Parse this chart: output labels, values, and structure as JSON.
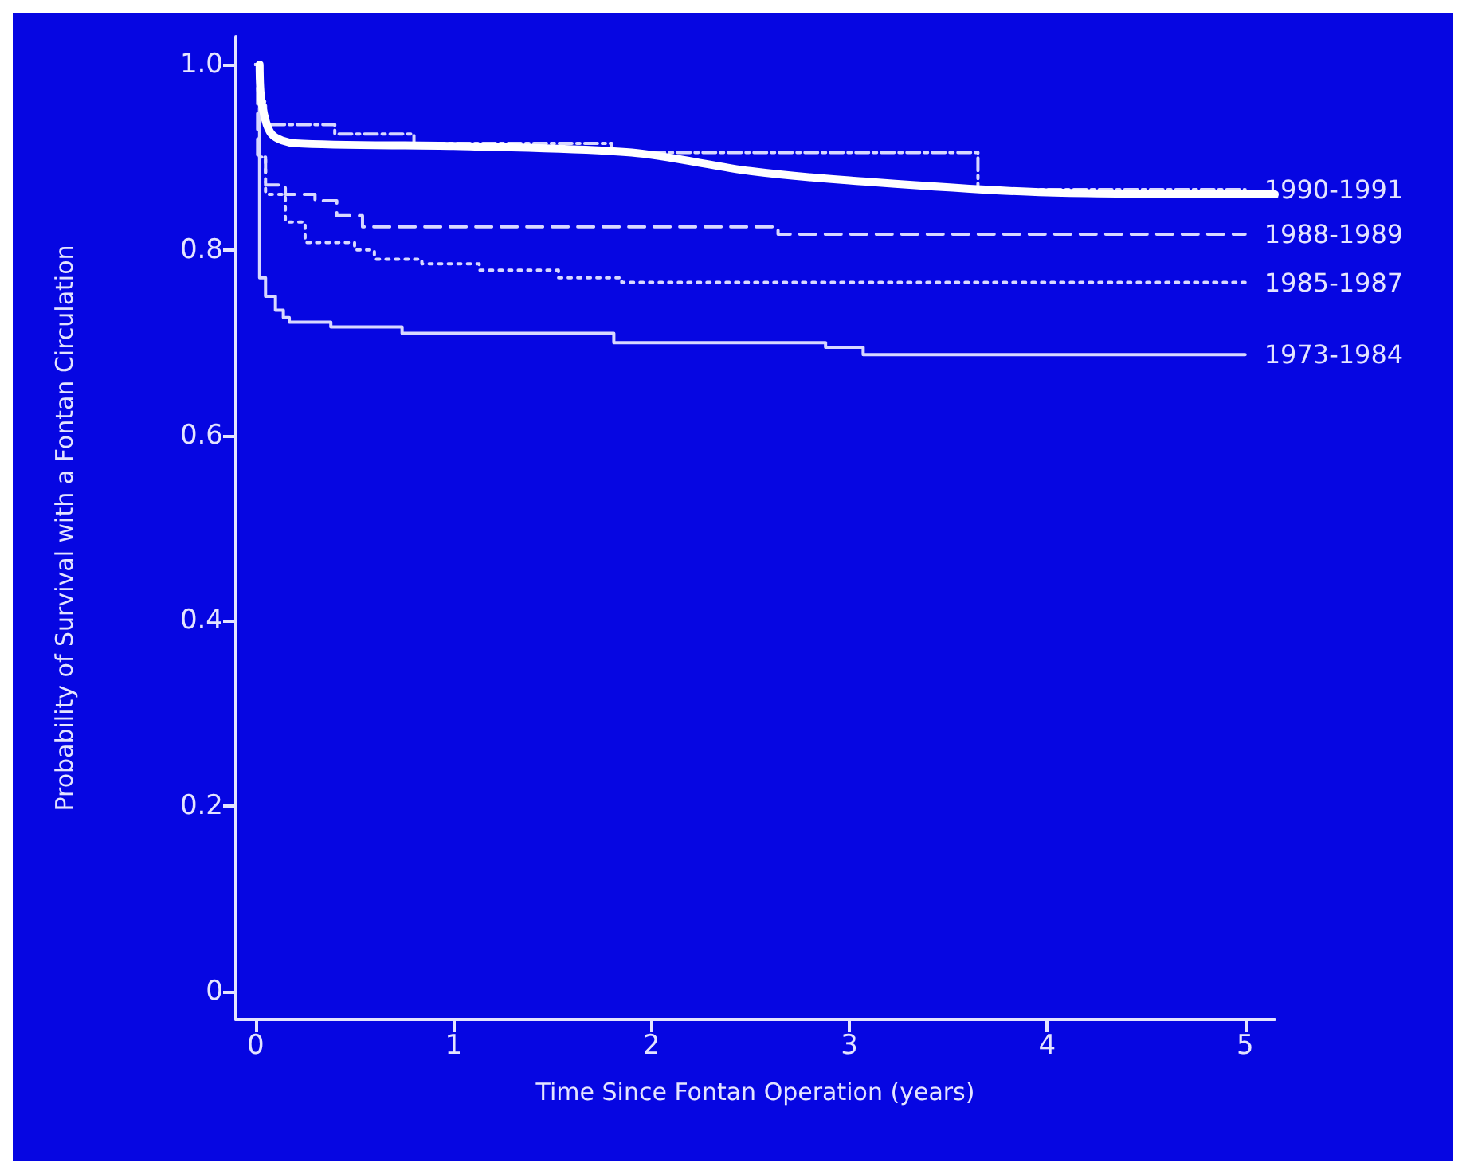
{
  "chart_data": {
    "type": "step",
    "xlabel": "Time Since Fontan Operation (years)",
    "ylabel": "Probability of Survival with a Fontan Circulation",
    "xlim": [
      -0.1,
      5.15
    ],
    "ylim": [
      -0.03,
      1.03
    ],
    "xticks": [
      0,
      1,
      2,
      3,
      4,
      5
    ],
    "yticks": [
      0,
      {
        "value": 0.2,
        "label": "0.2"
      },
      {
        "value": 0.4,
        "label": "0.4"
      },
      {
        "value": 0.6,
        "label": "0.6"
      },
      {
        "value": 0.8,
        "label": "0.8"
      },
      {
        "value": 1,
        "label": "1.0"
      }
    ],
    "grid": false,
    "legend": false,
    "marker": "none",
    "series": [
      {
        "name": "1990-1991",
        "color": "#d8d8ff",
        "line_style": "dashdot",
        "x": [
          0,
          0.02,
          0.05,
          0.4,
          0.8,
          1.8,
          3.65,
          5.0
        ],
        "values": [
          1.0,
          0.96,
          0.935,
          0.925,
          0.915,
          0.905,
          0.865,
          0.865
        ]
      },
      {
        "name": "1988-1989",
        "color": "#d8d8ff",
        "line_style": "dashed",
        "x": [
          0,
          0.01,
          0.05,
          0.15,
          0.3,
          0.41,
          0.54,
          2.64,
          5.0
        ],
        "values": [
          1.0,
          0.9,
          0.87,
          0.86,
          0.853,
          0.837,
          0.825,
          0.817,
          0.817
        ]
      },
      {
        "name": "1985-1987",
        "color": "#d8d8ff",
        "line_style": "dotted",
        "x": [
          0,
          0.02,
          0.05,
          0.15,
          0.25,
          0.5,
          0.6,
          0.84,
          1.13,
          1.53,
          1.85,
          5.0
        ],
        "values": [
          1.0,
          0.9,
          0.86,
          0.83,
          0.808,
          0.8,
          0.79,
          0.785,
          0.778,
          0.77,
          0.765,
          0.765
        ]
      },
      {
        "name": "1973-1984",
        "color": "#d8d8ff",
        "line_style": "solid",
        "x": [
          0,
          0.02,
          0.05,
          0.1,
          0.14,
          0.17,
          0.38,
          0.74,
          1.81,
          2.88,
          3.07,
          5.0
        ],
        "values": [
          1.0,
          0.77,
          0.75,
          0.735,
          0.727,
          0.722,
          0.717,
          0.71,
          0.7,
          0.695,
          0.687,
          0.687
        ]
      },
      {
        "type": "line",
        "color": "#ffffff",
        "line_style": "solid",
        "x": [
          0.02,
          0.03,
          0.08,
          0.2,
          1.0,
          1.9,
          2.5,
          3.0,
          4.0,
          5.15
        ],
        "values": [
          1.0,
          0.96,
          0.925,
          0.915,
          0.912,
          0.905,
          0.885,
          0.875,
          0.862,
          0.86
        ]
      }
    ]
  }
}
